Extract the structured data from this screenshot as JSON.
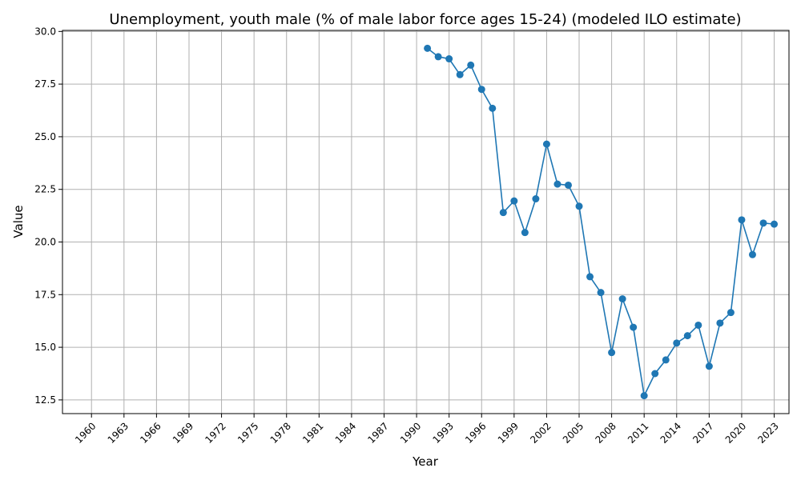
{
  "chart_data": {
    "type": "line",
    "title": "Unemployment, youth male (% of male labor force ages 15-24) (modeled ILO estimate)",
    "xlabel": "Year",
    "ylabel": "Value",
    "xlim": [
      1960,
      2023
    ],
    "ylim": [
      12.5,
      30.0
    ],
    "x_ticks": [
      1960,
      1963,
      1966,
      1969,
      1972,
      1975,
      1978,
      1981,
      1984,
      1987,
      1990,
      1993,
      1996,
      1999,
      2002,
      2005,
      2008,
      2011,
      2014,
      2017,
      2020,
      2023
    ],
    "y_ticks": [
      "12.5",
      "15.0",
      "17.5",
      "20.0",
      "22.5",
      "25.0",
      "27.5",
      "30.0"
    ],
    "grid": true,
    "series_color": "#1f77b4",
    "x": [
      1991,
      1992,
      1993,
      1994,
      1995,
      1996,
      1997,
      1998,
      1999,
      2000,
      2001,
      2002,
      2003,
      2004,
      2005,
      2006,
      2007,
      2008,
      2009,
      2010,
      2011,
      2012,
      2013,
      2014,
      2015,
      2016,
      2017,
      2018,
      2019,
      2020,
      2021,
      2022,
      2023
    ],
    "y": [
      29.2,
      28.8,
      28.7,
      27.95,
      28.4,
      27.25,
      26.35,
      21.4,
      21.95,
      20.45,
      22.05,
      24.65,
      22.75,
      22.7,
      21.7,
      18.35,
      17.6,
      14.75,
      17.3,
      15.95,
      12.7,
      13.75,
      14.4,
      15.2,
      15.55,
      16.05,
      14.1,
      16.15,
      16.65,
      21.05,
      19.4,
      20.9,
      20.85
    ]
  }
}
